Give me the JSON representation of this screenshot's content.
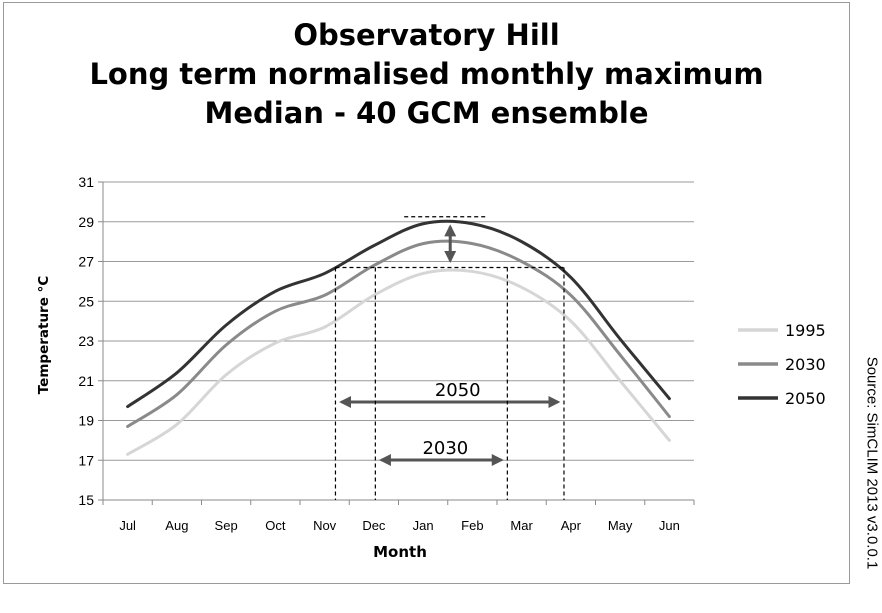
{
  "chart_data": {
    "type": "line",
    "title": [
      "Observatory Hill",
      "Long term normalised monthly maximum",
      "Median - 40 GCM ensemble"
    ],
    "xlabel": "Month",
    "ylabel": "Temperature °C",
    "categories": [
      "Jul",
      "Aug",
      "Sep",
      "Oct",
      "Nov",
      "Dec",
      "Jan",
      "Feb",
      "Mar",
      "Apr",
      "May",
      "Jun"
    ],
    "ylim": [
      15,
      31
    ],
    "yticks": [
      15,
      17,
      19,
      21,
      23,
      25,
      27,
      29,
      31
    ],
    "grid": "horizontal",
    "legend_position": "right",
    "series": [
      {
        "name": "1995",
        "color": "#d6d6d6",
        "values": [
          17.3,
          18.8,
          21.3,
          22.9,
          23.7,
          25.3,
          26.4,
          26.5,
          25.7,
          24.0,
          21.0,
          18.0
        ]
      },
      {
        "name": "2030",
        "color": "#8a8a8a",
        "values": [
          18.7,
          20.3,
          22.8,
          24.5,
          25.3,
          26.8,
          27.9,
          27.9,
          27.0,
          25.3,
          22.3,
          19.2
        ]
      },
      {
        "name": "2050",
        "color": "#333333",
        "values": [
          19.7,
          21.4,
          23.8,
          25.5,
          26.4,
          27.8,
          28.9,
          28.9,
          28.0,
          26.2,
          23.1,
          20.1
        ]
      }
    ],
    "annotations": [
      {
        "label": "2050",
        "from_month": "Nov",
        "to_month": "Apr",
        "threshold": 26.7
      },
      {
        "label": "2030",
        "from_month": "Dec",
        "to_month": "Mar",
        "threshold": 26.7
      }
    ]
  },
  "source_text": "Source: SimCLIM 2013 v3.0.0.1"
}
